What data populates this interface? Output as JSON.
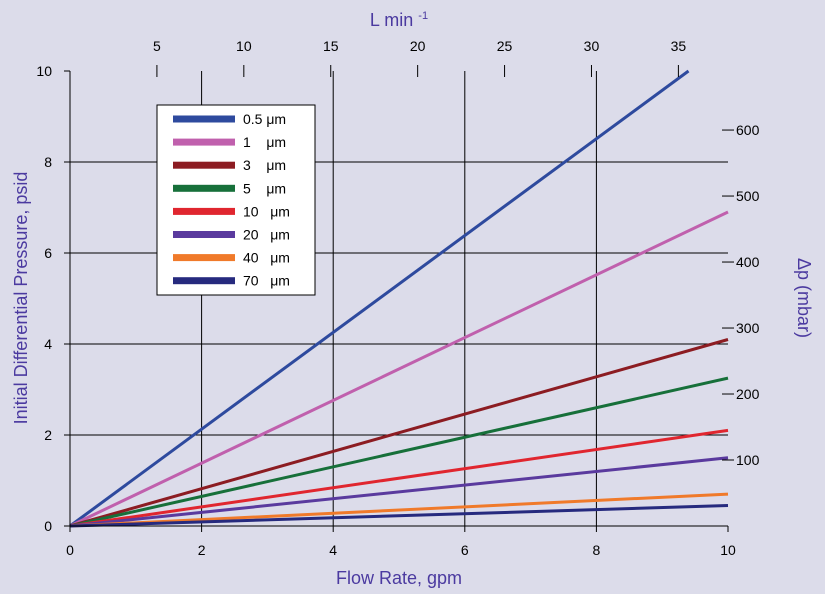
{
  "chart_data": {
    "type": "line",
    "xlabel": "Flow Rate, gpm",
    "ylabel": "Initial Differential Pressure, psid",
    "x_top_label": "L min",
    "x_top_label_sup": "-1",
    "y_right_label": "Δp (mbar)",
    "xlim": [
      0,
      10
    ],
    "ylim": [
      0,
      10
    ],
    "x_ticks": [
      "0",
      "2",
      "4",
      "6",
      "8",
      "10"
    ],
    "y_ticks": [
      "0",
      "2",
      "4",
      "6",
      "8",
      "10"
    ],
    "x_top_ticks": [
      "5",
      "10",
      "15",
      "20",
      "25",
      "30",
      "35"
    ],
    "y_right_ticks": [
      "100",
      "200",
      "300",
      "400",
      "500",
      "600"
    ],
    "grid": true,
    "legend_position": "top-left",
    "axis_title_color": "#4b3aa0",
    "series": [
      {
        "name": "0.5 μm",
        "color": "#2e4a9e",
        "x": [
          0,
          9.4
        ],
        "y": [
          0,
          10
        ]
      },
      {
        "name": "1    μm",
        "color": "#c060ad",
        "x": [
          0,
          10
        ],
        "y": [
          0,
          6.9
        ]
      },
      {
        "name": "3    μm",
        "color": "#8c1c22",
        "x": [
          0,
          10
        ],
        "y": [
          0,
          4.1
        ]
      },
      {
        "name": "5    μm",
        "color": "#17703a",
        "x": [
          0,
          10
        ],
        "y": [
          0,
          3.25
        ]
      },
      {
        "name": "10   μm",
        "color": "#e0262f",
        "x": [
          0,
          10
        ],
        "y": [
          0,
          2.1
        ]
      },
      {
        "name": "20   μm",
        "color": "#5a3a9e",
        "x": [
          0,
          10
        ],
        "y": [
          0,
          1.5
        ]
      },
      {
        "name": "40   μm",
        "color": "#f07a2a",
        "x": [
          0,
          10
        ],
        "y": [
          0,
          0.7
        ]
      },
      {
        "name": "70   μm",
        "color": "#262a7e",
        "x": [
          0,
          10
        ],
        "y": [
          0,
          0.45
        ]
      }
    ]
  }
}
